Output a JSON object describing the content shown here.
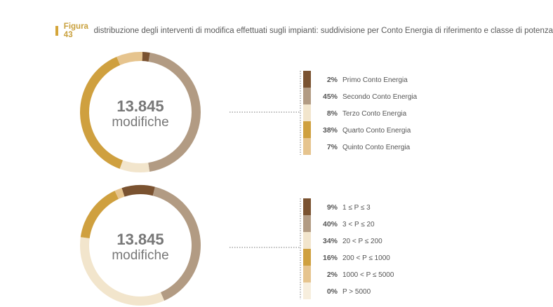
{
  "header": {
    "label": "Figura 43",
    "title": "distribuzione degli interventi di modifica effettuati sugli impianti: suddivisione per Conto Energia di riferimento e classe di potenza"
  },
  "chart_data": [
    {
      "type": "pie",
      "center_value": "13.845",
      "center_label": "modifiche",
      "categories": [
        "Primo Conto Energia",
        "Secondo Conto Energia",
        "Terzo Conto Energia",
        "Quarto Conto Energia",
        "Quinto Conto Energia"
      ],
      "values": [
        2,
        45,
        8,
        38,
        7
      ],
      "value_labels": [
        "2%",
        "45%",
        "8%",
        "38%",
        "7%"
      ],
      "colors": [
        "#7a5230",
        "#b29b83",
        "#f2e5cc",
        "#cfa03f",
        "#e6c48e"
      ],
      "legend": "right"
    },
    {
      "type": "pie",
      "center_value": "13.845",
      "center_label": "modifiche",
      "categories": [
        "1 ≤ P ≤ 3",
        "3 < P ≤ 20",
        "20 < P ≤ 200",
        "200 < P ≤ 1000",
        "1000 < P ≤ 5000",
        "P > 5000"
      ],
      "values": [
        9,
        40,
        34,
        16,
        2,
        0
      ],
      "value_labels": [
        "9%",
        "40%",
        "34%",
        "16%",
        "2%",
        "0%"
      ],
      "colors": [
        "#7a5230",
        "#b29b83",
        "#f2e5cc",
        "#cfa03f",
        "#e6c48e",
        "#f7eedd"
      ],
      "legend": "right"
    }
  ]
}
